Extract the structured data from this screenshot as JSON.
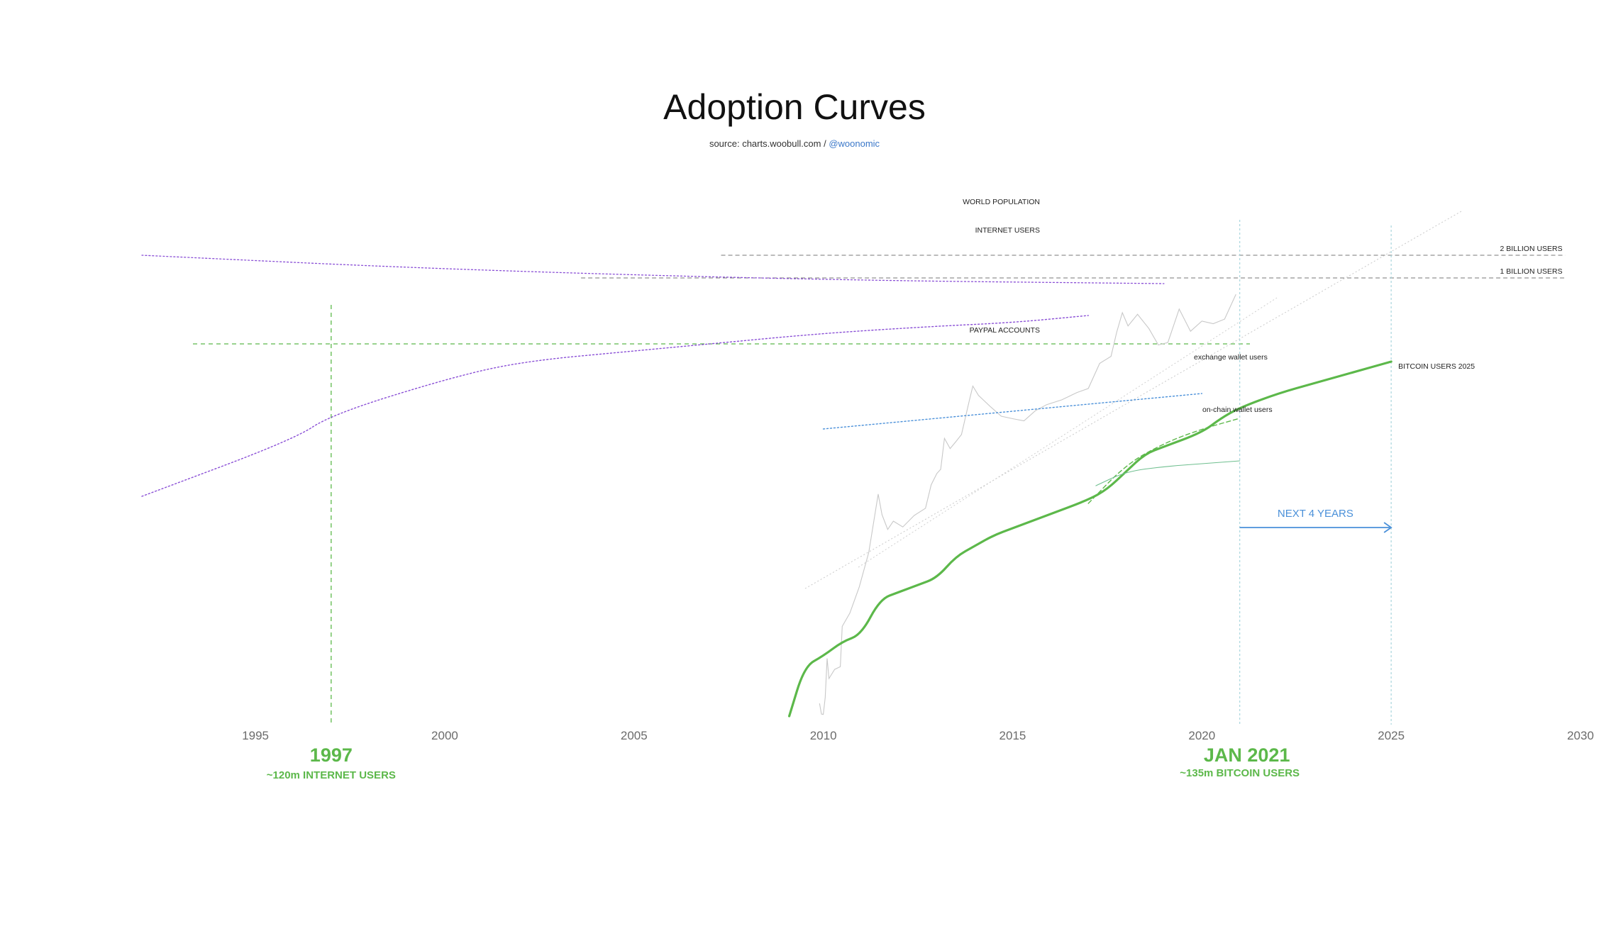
{
  "title": "Adoption Curves",
  "source": {
    "text": "source: charts.woobull.com / ",
    "handle": "@woonomic"
  },
  "colors": {
    "bitcoin": "#5cb84a",
    "purple": "#8a4fd6",
    "blue": "#4a90d9",
    "gray": "#777777",
    "price": "#c8c8c8"
  },
  "chart_data": {
    "type": "line",
    "x_axis": {
      "range": [
        1992,
        2030
      ],
      "ticks": [
        1995,
        2000,
        2005,
        2010,
        2015,
        2020,
        2025,
        2030
      ]
    },
    "series": [
      {
        "name": "WORLD POPULATION",
        "style": "dotted",
        "points": [
          [
            1992,
            0.16
          ],
          [
            2000,
            0.18
          ],
          [
            2010,
            0.195
          ],
          [
            2019,
            0.2
          ]
        ]
      },
      {
        "name": "INTERNET USERS",
        "style": "dotted",
        "points": [
          [
            1992,
            0.5
          ],
          [
            1996,
            0.42
          ],
          [
            1997,
            0.385
          ],
          [
            2000,
            0.335
          ],
          [
            2002,
            0.31
          ],
          [
            2005,
            0.295
          ],
          [
            2007,
            0.285
          ],
          [
            2010,
            0.27
          ],
          [
            2013,
            0.26
          ],
          [
            2015,
            0.255
          ],
          [
            2017,
            0.245
          ]
        ]
      },
      {
        "name": "PAYPAL ACCOUNTS",
        "style": "dotted",
        "points": [
          [
            2010,
            0.405
          ],
          [
            2015,
            0.38
          ],
          [
            2020,
            0.355
          ]
        ]
      },
      {
        "name": "BITCOIN USERS 2025",
        "style": "solid",
        "points": [
          [
            2009.1,
            0.81
          ],
          [
            2009.5,
            0.74
          ],
          [
            2010,
            0.725
          ],
          [
            2010.5,
            0.705
          ],
          [
            2011,
            0.695
          ],
          [
            2011.5,
            0.645
          ],
          [
            2012,
            0.635
          ],
          [
            2012.5,
            0.625
          ],
          [
            2013,
            0.615
          ],
          [
            2013.5,
            0.585
          ],
          [
            2014,
            0.57
          ],
          [
            2014.5,
            0.555
          ],
          [
            2015,
            0.545
          ],
          [
            2015.5,
            0.535
          ],
          [
            2016,
            0.525
          ],
          [
            2017,
            0.505
          ],
          [
            2017.5,
            0.49
          ],
          [
            2018,
            0.465
          ],
          [
            2018.5,
            0.44
          ],
          [
            2019,
            0.43
          ],
          [
            2020,
            0.41
          ],
          [
            2020.5,
            0.39
          ],
          [
            2021,
            0.375
          ],
          [
            2022,
            0.355
          ],
          [
            2023,
            0.34
          ],
          [
            2024,
            0.325
          ],
          [
            2025,
            0.31
          ]
        ]
      },
      {
        "name": "exchange wallet users",
        "style": "dashed",
        "points": [
          [
            2017,
            0.51
          ],
          [
            2018,
            0.455
          ],
          [
            2019,
            0.425
          ],
          [
            2020,
            0.405
          ],
          [
            2021,
            0.39
          ]
        ]
      },
      {
        "name": "on-chain wallet users",
        "style": "solid",
        "points": [
          [
            2017.2,
            0.485
          ],
          [
            2018,
            0.465
          ],
          [
            2019,
            0.458
          ],
          [
            2020,
            0.454
          ],
          [
            2021,
            0.45
          ]
        ]
      }
    ],
    "reference_lines": [
      {
        "name": "2 BILLION USERS",
        "from": 2007.3,
        "to": 2029.6
      },
      {
        "name": "1 BILLION USERS",
        "from": 2003.6,
        "to": 2029.6
      }
    ],
    "markers": [
      {
        "year": 1997,
        "label": "1997",
        "sublabel": "~120m INTERNET USERS"
      },
      {
        "year": 2021,
        "label": "JAN 2021",
        "sublabel": "~135m BITCOIN USERS"
      },
      {
        "year": 2025
      }
    ],
    "annotation": {
      "text": "NEXT 4 YEARS",
      "from": 2021,
      "to": 2025
    }
  }
}
